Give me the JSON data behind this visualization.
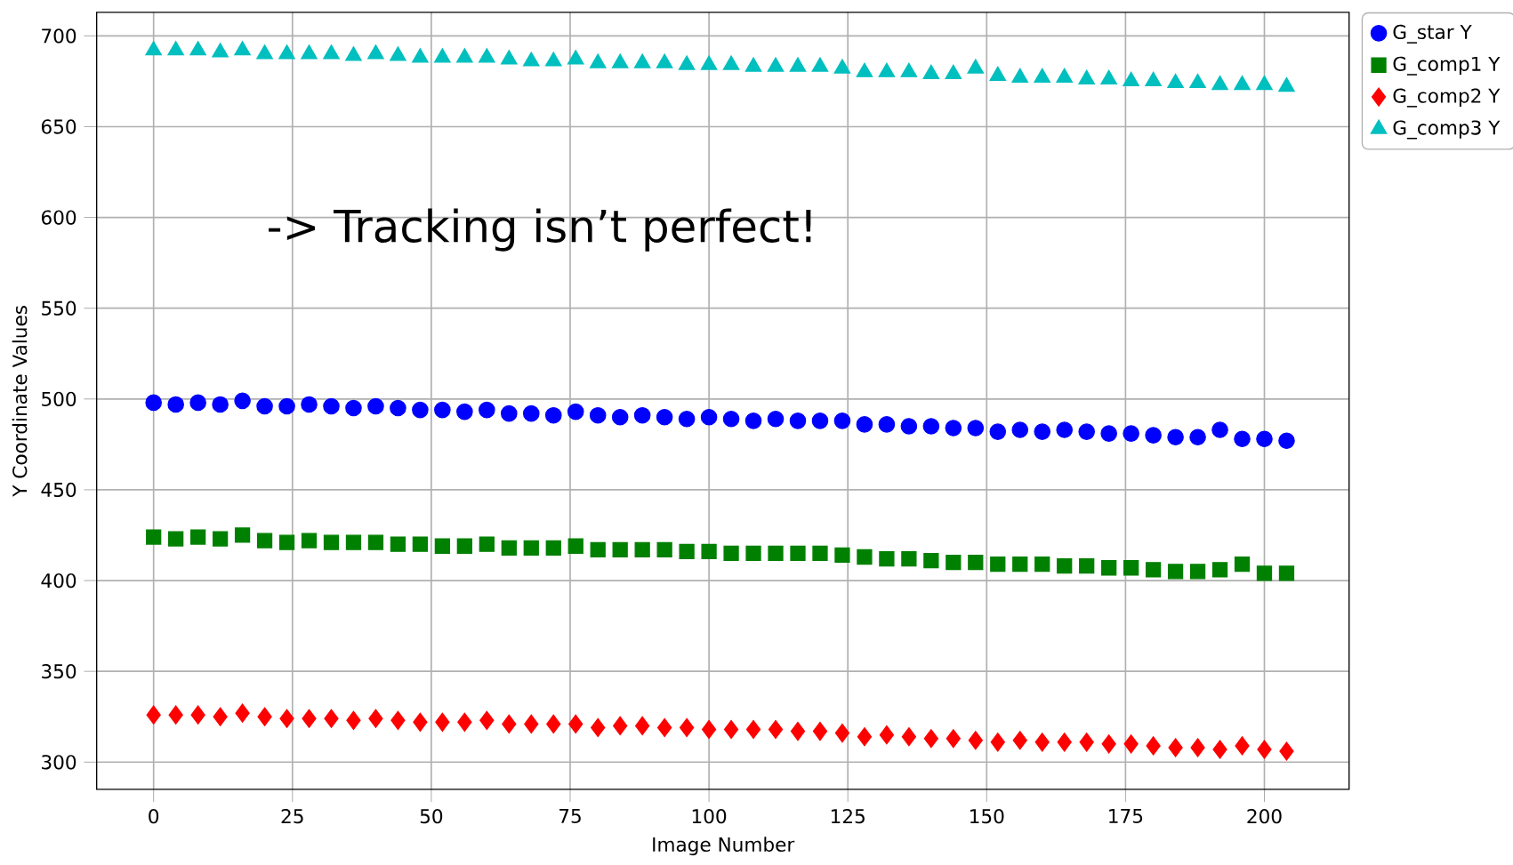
{
  "chart_data": {
    "type": "scatter",
    "xlabel": "Image Number",
    "ylabel": "Y Coordinate Values",
    "annotations": [
      "-> Tracking isn’t perfect!"
    ],
    "x": [
      0,
      4,
      8,
      12,
      16,
      20,
      24,
      28,
      32,
      36,
      40,
      44,
      48,
      52,
      56,
      60,
      64,
      68,
      72,
      76,
      80,
      84,
      88,
      92,
      96,
      100,
      104,
      108,
      112,
      116,
      120,
      124,
      128,
      132,
      136,
      140,
      144,
      148,
      152,
      156,
      160,
      164,
      168,
      172,
      176,
      180,
      184,
      188,
      192,
      196,
      200,
      204
    ],
    "series": [
      {
        "name": "G_star Y",
        "color": "#0000ff",
        "marker": "circle",
        "values": [
          498,
          497,
          498,
          497,
          499,
          496,
          496,
          497,
          496,
          495,
          496,
          495,
          494,
          494,
          493,
          494,
          492,
          492,
          491,
          493,
          491,
          490,
          491,
          490,
          489,
          490,
          489,
          488,
          489,
          488,
          488,
          488,
          486,
          486,
          485,
          485,
          484,
          484,
          482,
          483,
          482,
          483,
          482,
          481,
          481,
          480,
          479,
          479,
          483,
          478,
          478,
          477
        ]
      },
      {
        "name": "G_comp1 Y",
        "color": "#008000",
        "marker": "square",
        "values": [
          424,
          423,
          424,
          423,
          425,
          422,
          421,
          422,
          421,
          421,
          421,
          420,
          420,
          419,
          419,
          420,
          418,
          418,
          418,
          419,
          417,
          417,
          417,
          417,
          416,
          416,
          415,
          415,
          415,
          415,
          415,
          414,
          413,
          412,
          412,
          411,
          410,
          410,
          409,
          409,
          409,
          408,
          408,
          407,
          407,
          406,
          405,
          405,
          406,
          409,
          404,
          404
        ]
      },
      {
        "name": "G_comp2 Y",
        "color": "#ff0000",
        "marker": "diamond",
        "values": [
          326,
          326,
          326,
          325,
          327,
          325,
          324,
          324,
          324,
          323,
          324,
          323,
          322,
          322,
          322,
          323,
          321,
          321,
          321,
          321,
          319,
          320,
          320,
          319,
          319,
          318,
          318,
          318,
          318,
          317,
          317,
          316,
          314,
          315,
          314,
          313,
          313,
          312,
          311,
          312,
          311,
          311,
          311,
          310,
          310,
          309,
          308,
          308,
          307,
          309,
          307,
          306
        ]
      },
      {
        "name": "G_comp3 Y",
        "color": "#00bfbf",
        "marker": "triangle",
        "values": [
          692,
          692,
          692,
          691,
          692,
          690,
          690,
          690,
          690,
          689,
          690,
          689,
          688,
          688,
          688,
          688,
          687,
          686,
          686,
          687,
          685,
          685,
          685,
          685,
          684,
          684,
          684,
          683,
          683,
          683,
          683,
          682,
          680,
          680,
          680,
          679,
          679,
          682,
          678,
          677,
          677,
          677,
          676,
          676,
          675,
          675,
          674,
          674,
          673,
          673,
          673,
          672
        ]
      }
    ],
    "xlim": [
      -10.25,
      215.25
    ],
    "ylim": [
      285,
      713
    ],
    "xticks": [
      0,
      25,
      50,
      75,
      100,
      125,
      150,
      175,
      200
    ],
    "yticks": [
      300,
      350,
      400,
      450,
      500,
      550,
      600,
      650,
      700
    ],
    "grid": true,
    "legend": "top right"
  }
}
